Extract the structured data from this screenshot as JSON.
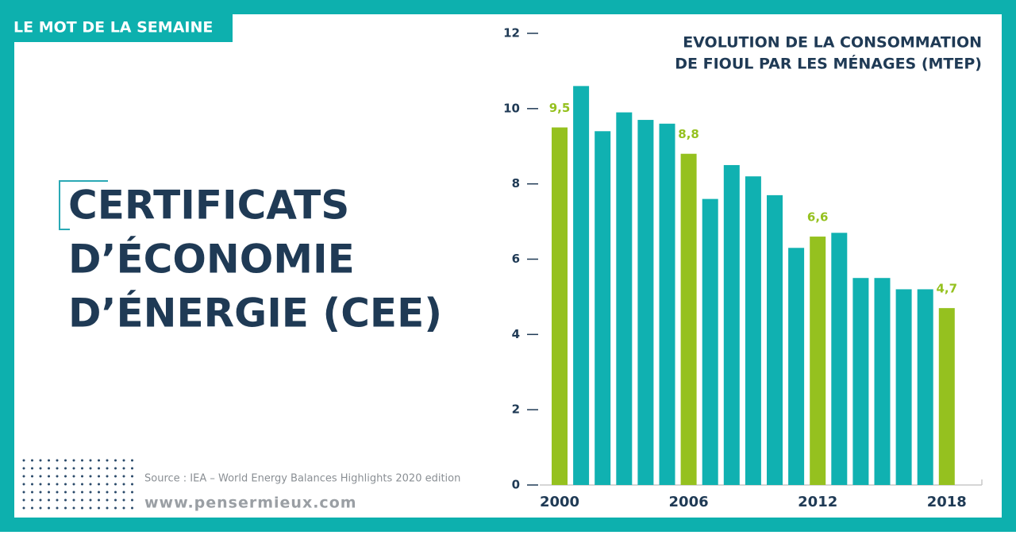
{
  "header": {
    "label": "LE MOT DE LA SEMAINE"
  },
  "title": {
    "lines": [
      "CERTIFICATS",
      "D’ÉCONOMIE",
      "D’ÉNERGIE (CEE)"
    ]
  },
  "footer": {
    "source": "Source : IEA – World Energy Balances Highlights 2020 edition",
    "website": "www.pensermieux.com"
  },
  "chart_data": {
    "type": "bar",
    "title_lines": [
      "EVOLUTION DE LA CONSOMMATION",
      "DE FIOUL PAR LES MÉNAGES (MTEP)"
    ],
    "categories": [
      "2000",
      null,
      null,
      null,
      null,
      null,
      "2006",
      null,
      null,
      null,
      null,
      null,
      "2012",
      null,
      null,
      null,
      null,
      null,
      "2018"
    ],
    "values": [
      9.5,
      10.6,
      9.4,
      9.9,
      9.7,
      9.6,
      8.8,
      7.6,
      8.5,
      8.2,
      7.7,
      6.3,
      6.6,
      6.7,
      5.5,
      5.5,
      5.2,
      5.2,
      4.7
    ],
    "value_labels": [
      "9,5",
      null,
      null,
      null,
      null,
      null,
      "8,8",
      null,
      null,
      null,
      null,
      null,
      "6,6",
      null,
      null,
      null,
      null,
      null,
      "4,7"
    ],
    "colors": [
      "#95c11f",
      "#10b1b1",
      "#10b1b1",
      "#10b1b1",
      "#10b1b1",
      "#10b1b1",
      "#95c11f",
      "#10b1b1",
      "#10b1b1",
      "#10b1b1",
      "#10b1b1",
      "#10b1b1",
      "#95c11f",
      "#10b1b1",
      "#10b1b1",
      "#10b1b1",
      "#10b1b1",
      "#10b1b1",
      "#95c11f"
    ],
    "ylim": [
      0,
      12
    ],
    "yticks": [
      0,
      2,
      4,
      6,
      8,
      10,
      12
    ],
    "grid": false
  }
}
